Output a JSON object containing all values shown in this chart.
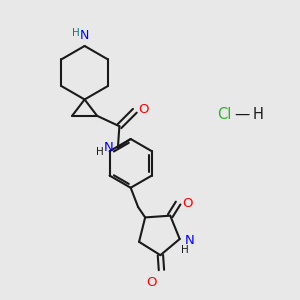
{
  "background_color": "#e8e8e8",
  "bond_color": "#1a1a1a",
  "nitrogen_color": "#0000ff",
  "oxygen_color": "#ff0000",
  "hydrogen_color": "#008080",
  "hcl_color": "#2db32d",
  "figsize": [
    3.0,
    3.0
  ],
  "dpi": 100,
  "xlim": [
    0,
    10
  ],
  "ylim": [
    0,
    10
  ]
}
